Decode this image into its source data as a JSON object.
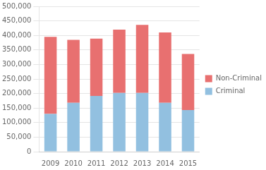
{
  "chart_data": {
    "type": "bar",
    "stacked": true,
    "grid": true,
    "legend": "right",
    "categories": [
      "2009",
      "2010",
      "2011",
      "2012",
      "2013",
      "2014",
      "2015"
    ],
    "series": [
      {
        "name": "Criminal",
        "color": "#92C0E0",
        "values": [
          130000,
          168000,
          192000,
          202000,
          202000,
          168000,
          143000
        ]
      },
      {
        "name": "Non-Criminal",
        "color": "#E87070",
        "values": [
          265000,
          217000,
          197000,
          218000,
          234000,
          242000,
          193000
        ]
      }
    ],
    "ylim": [
      0,
      500000
    ],
    "yticks": [
      0,
      {
        "value": 50000,
        "label": "50,000"
      },
      {
        "value": 100000,
        "label": "100,000"
      },
      {
        "value": 150000,
        "label": "150,000"
      },
      {
        "value": 200000,
        "label": "200,000"
      },
      {
        "value": 250000,
        "label": "250,000"
      },
      {
        "value": 300000,
        "label": "300,000"
      },
      {
        "value": 350000,
        "label": "350,000"
      },
      {
        "value": 400000,
        "label": "400,000"
      },
      {
        "value": 450000,
        "label": "450,000"
      },
      {
        "value": 500000,
        "label": "500,000"
      }
    ]
  }
}
